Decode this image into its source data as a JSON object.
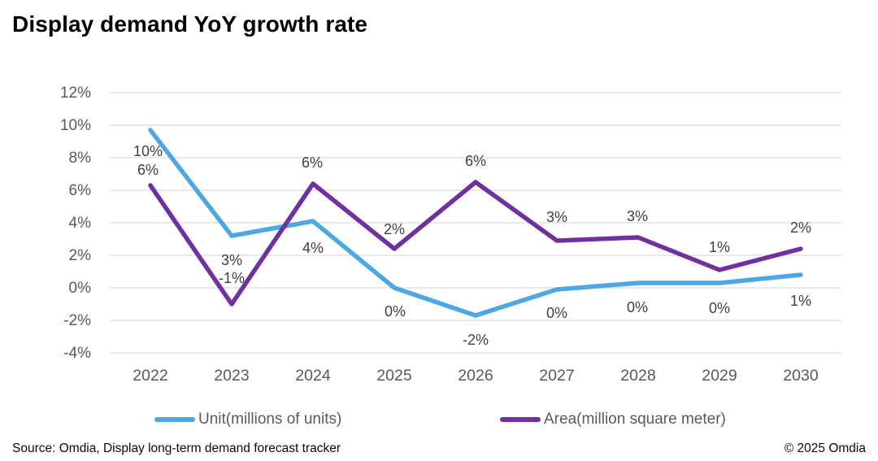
{
  "page": {
    "title": "Display demand YoY growth rate",
    "footer": {
      "source": "Source: Omdia, Display long-term demand forecast tracker",
      "copyright": "© 2025 Omdia"
    }
  },
  "chart_data": {
    "type": "line",
    "title": "Display demand YoY growth rate",
    "categories": [
      "2022",
      "2023",
      "2024",
      "2025",
      "2026",
      "2027",
      "2028",
      "2029",
      "2030"
    ],
    "y_axis": {
      "ticks": [
        "12%",
        "10%",
        "8%",
        "6%",
        "4%",
        "2%",
        "0%",
        "-2%",
        "-4%"
      ],
      "max": 12,
      "min": -4,
      "step": 2,
      "unit": "%"
    },
    "grid": "horizontal",
    "legend_position": "bottom",
    "series": [
      {
        "id": "unit",
        "name": "Unit(millions of units)",
        "color": "#4da7e2",
        "values": [
          9.7,
          3.2,
          4.1,
          0.0,
          -1.7,
          -0.1,
          0.3,
          0.3,
          0.8
        ],
        "labels": [
          "10%",
          "3%",
          "4%",
          "0%",
          "-2%",
          "0%",
          "0%",
          "0%",
          "1%"
        ],
        "label_offsets": [
          [
            -3,
            32
          ],
          [
            0,
            36
          ],
          [
            0,
            39
          ],
          [
            1,
            35
          ],
          [
            0,
            36
          ],
          [
            0,
            35
          ],
          [
            -1,
            36
          ],
          [
            0,
            37
          ],
          [
            0,
            38
          ]
        ]
      },
      {
        "id": "area",
        "name": "Area(million square meter)",
        "color": "#7030a0",
        "values": [
          6.3,
          -1.0,
          6.4,
          2.4,
          6.5,
          2.9,
          3.1,
          1.1,
          2.4
        ],
        "labels": [
          "6%",
          "-1%",
          "6%",
          "2%",
          "6%",
          "3%",
          "3%",
          "1%",
          "2%"
        ],
        "label_offsets": [
          [
            -3,
            -13
          ],
          [
            0,
            -26
          ],
          [
            -1,
            -20
          ],
          [
            0,
            -18
          ],
          [
            0,
            -20
          ],
          [
            0,
            -23
          ],
          [
            -1,
            -20
          ],
          [
            0,
            -22
          ],
          [
            0,
            -20
          ]
        ]
      }
    ],
    "colors": {
      "grid": "#d9d9d9",
      "axis_text": "#595959",
      "data_label_text": "#404040"
    }
  }
}
